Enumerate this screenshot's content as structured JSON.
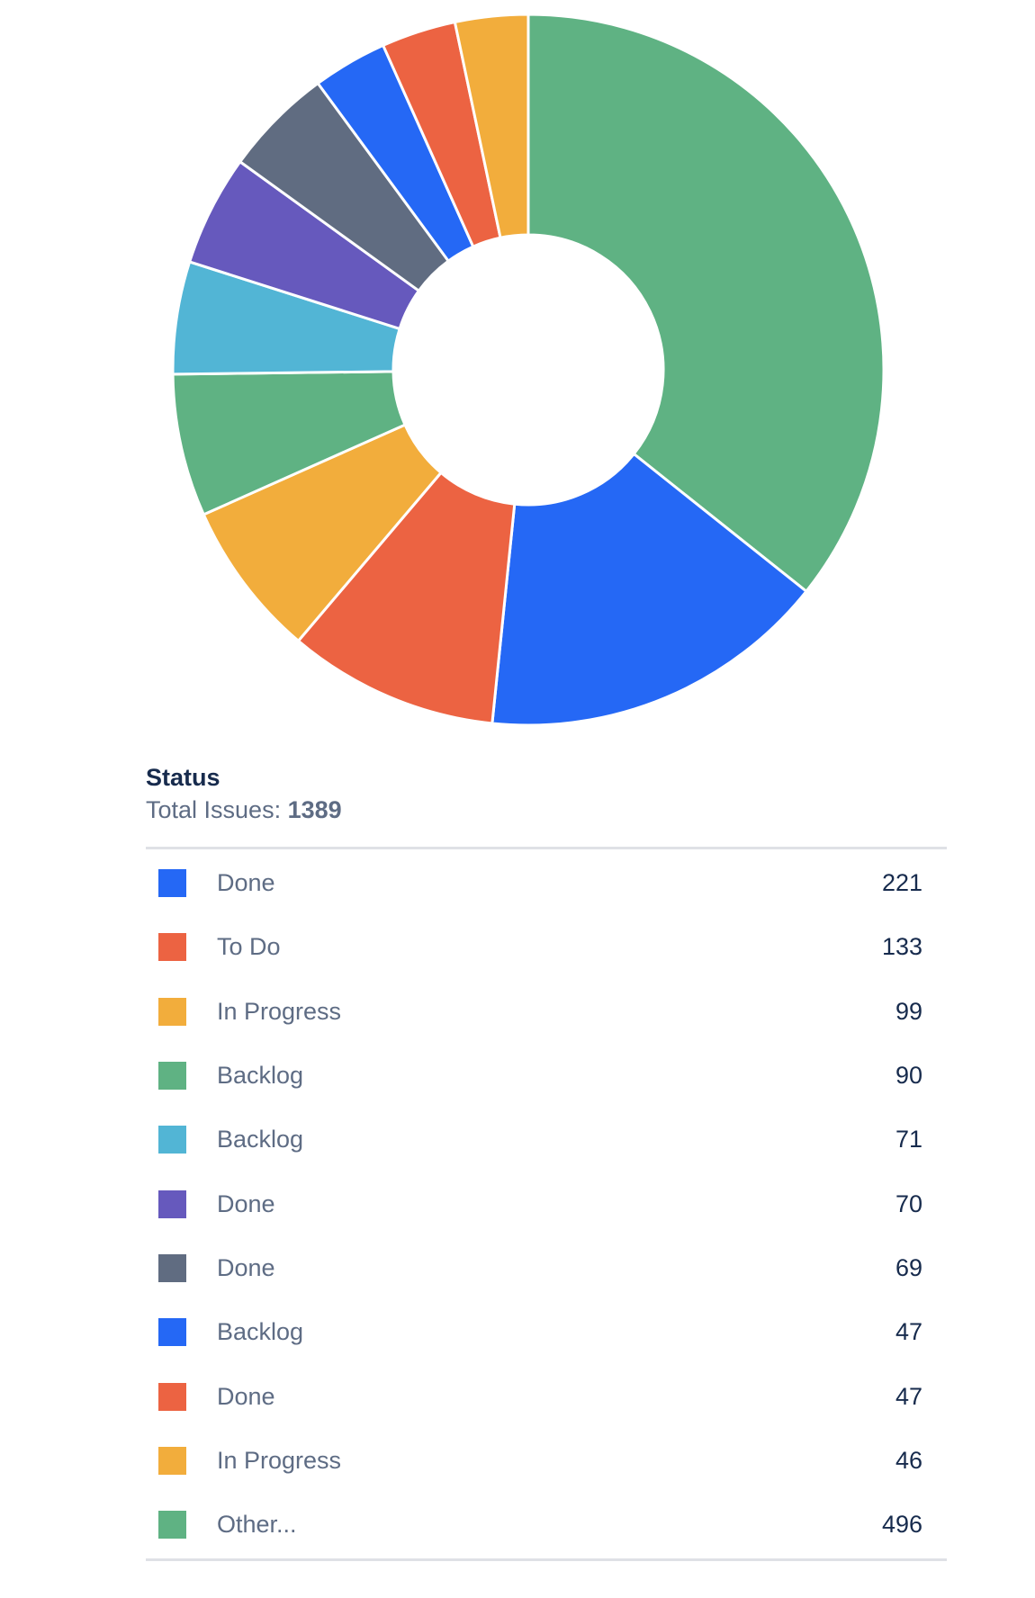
{
  "chart_data": {
    "type": "pie",
    "variant": "donut",
    "title": "Status",
    "total_label": "Total Issues:",
    "total_value": "1389",
    "start": "top, clockwise from largest to smallest with Other first",
    "slices": [
      {
        "label": "Other...",
        "value": 496,
        "color": "#5fb283"
      },
      {
        "label": "Done",
        "value": 221,
        "color": "#2568f5"
      },
      {
        "label": "To Do",
        "value": 133,
        "color": "#ec6342"
      },
      {
        "label": "In Progress",
        "value": 99,
        "color": "#f2ad3c"
      },
      {
        "label": "Backlog",
        "value": 90,
        "color": "#5fb283"
      },
      {
        "label": "Backlog",
        "value": 71,
        "color": "#52b5d5"
      },
      {
        "label": "Done",
        "value": 70,
        "color": "#6659bd"
      },
      {
        "label": "Done",
        "value": 69,
        "color": "#606c81"
      },
      {
        "label": "Backlog",
        "value": 47,
        "color": "#2568f5"
      },
      {
        "label": "Done",
        "value": 47,
        "color": "#ec6342"
      },
      {
        "label": "In Progress",
        "value": 46,
        "color": "#f2ad3c"
      }
    ],
    "legend": [
      {
        "label": "Done",
        "value": "221",
        "color": "#2568f5"
      },
      {
        "label": "To Do",
        "value": "133",
        "color": "#ec6342"
      },
      {
        "label": "In Progress",
        "value": "99",
        "color": "#f2ad3c"
      },
      {
        "label": "Backlog",
        "value": "90",
        "color": "#5fb283"
      },
      {
        "label": "Backlog",
        "value": "71",
        "color": "#52b5d5"
      },
      {
        "label": "Done",
        "value": "70",
        "color": "#6659bd"
      },
      {
        "label": "Done",
        "value": "69",
        "color": "#606c81"
      },
      {
        "label": "Backlog",
        "value": "47",
        "color": "#2568f5"
      },
      {
        "label": "Done",
        "value": "47",
        "color": "#ec6342"
      },
      {
        "label": "In Progress",
        "value": "46",
        "color": "#f2ad3c"
      },
      {
        "label": "Other...",
        "value": "496",
        "color": "#5fb283"
      }
    ]
  }
}
